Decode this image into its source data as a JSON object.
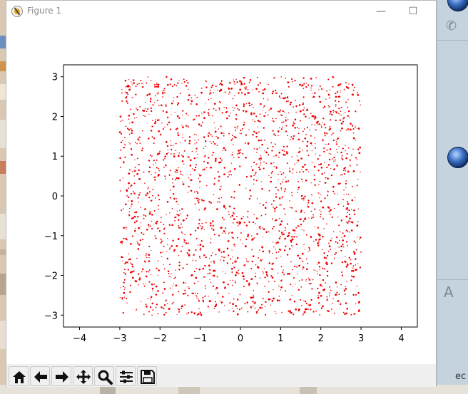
{
  "window": {
    "title": "Figure 1",
    "minimize_glyph": "—",
    "maximize_glyph": "☐"
  },
  "toolbar": {
    "tools": [
      "home-icon",
      "back-arrow-icon",
      "forward-arrow-icon",
      "pan-icon",
      "zoom-icon",
      "subplots-icon",
      "save-icon"
    ]
  },
  "side_panel": {
    "letter": "A",
    "phone_icon": "phone-icon"
  },
  "taskbar_text": "ec",
  "colors": {
    "points": "#ee0000",
    "axes": "#000000",
    "window_bg": "#ffffff",
    "toolbar_bg": "#f0f0f0"
  },
  "chart_data": {
    "type": "scatter",
    "title": "",
    "xlabel": "",
    "ylabel": "",
    "xlim": [
      -4.4,
      4.4
    ],
    "ylim": [
      -3.3,
      3.3
    ],
    "xticks": [
      -4,
      -3,
      -2,
      -1,
      0,
      1,
      2,
      3,
      4
    ],
    "yticks": [
      -3,
      -2,
      -1,
      0,
      1,
      2,
      3
    ],
    "grid": false,
    "legend": "none",
    "series": [
      {
        "marker_color": "#ee0000",
        "marker": "small dots",
        "x_range": [
          -3,
          3
        ],
        "y_range": [
          -3,
          3
        ],
        "pattern": "dense uniform grid of points filling the square [-3,3]×[-3,3], thinned into concentric rings around the origin with a sparse center"
      }
    ]
  }
}
